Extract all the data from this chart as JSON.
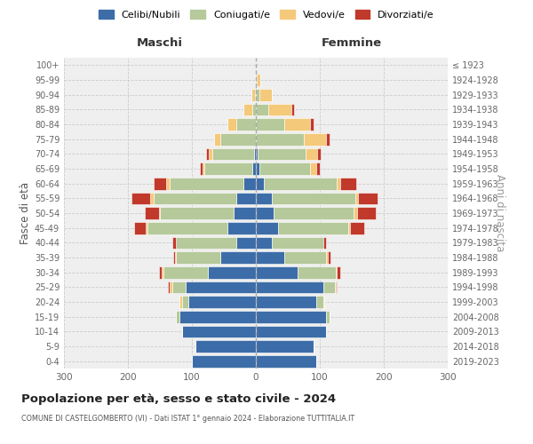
{
  "age_groups": [
    "0-4",
    "5-9",
    "10-14",
    "15-19",
    "20-24",
    "25-29",
    "30-34",
    "35-39",
    "40-44",
    "45-49",
    "50-54",
    "55-59",
    "60-64",
    "65-69",
    "70-74",
    "75-79",
    "80-84",
    "85-89",
    "90-94",
    "95-99",
    "100+"
  ],
  "birth_years": [
    "2019-2023",
    "2014-2018",
    "2009-2013",
    "2004-2008",
    "1999-2003",
    "1994-1998",
    "1989-1993",
    "1984-1988",
    "1979-1983",
    "1974-1978",
    "1969-1973",
    "1964-1968",
    "1959-1963",
    "1954-1958",
    "1949-1953",
    "1944-1948",
    "1939-1943",
    "1934-1938",
    "1929-1933",
    "1924-1928",
    "≤ 1923"
  ],
  "maschi_celibi": [
    100,
    95,
    115,
    120,
    105,
    110,
    75,
    55,
    30,
    45,
    35,
    30,
    20,
    5,
    3,
    0,
    0,
    0,
    0,
    0,
    0
  ],
  "maschi_coniugati": [
    0,
    0,
    0,
    5,
    10,
    20,
    70,
    70,
    95,
    125,
    115,
    130,
    115,
    75,
    65,
    55,
    30,
    5,
    2,
    0,
    0
  ],
  "maschi_vedovi": [
    0,
    0,
    0,
    0,
    5,
    5,
    2,
    2,
    0,
    2,
    2,
    5,
    5,
    3,
    5,
    10,
    15,
    15,
    5,
    2,
    0
  ],
  "maschi_divorziati": [
    0,
    0,
    0,
    0,
    0,
    2,
    5,
    2,
    5,
    18,
    22,
    30,
    20,
    5,
    5,
    0,
    0,
    0,
    0,
    0,
    0
  ],
  "femmine_nubili": [
    95,
    90,
    110,
    110,
    95,
    105,
    65,
    45,
    25,
    35,
    28,
    25,
    12,
    5,
    3,
    0,
    0,
    0,
    0,
    0,
    0
  ],
  "femmine_coniugate": [
    0,
    0,
    0,
    5,
    10,
    18,
    60,
    65,
    80,
    110,
    125,
    130,
    115,
    80,
    75,
    75,
    45,
    20,
    5,
    2,
    0
  ],
  "femmine_vedove": [
    0,
    0,
    0,
    0,
    2,
    2,
    2,
    2,
    0,
    2,
    5,
    5,
    5,
    10,
    18,
    35,
    40,
    35,
    20,
    5,
    0
  ],
  "femmine_divorziate": [
    0,
    0,
    0,
    0,
    0,
    2,
    5,
    5,
    5,
    22,
    30,
    30,
    25,
    5,
    5,
    5,
    5,
    5,
    0,
    0,
    0
  ],
  "colors": {
    "celibi": "#3d6da8",
    "coniugati": "#b5c99a",
    "vedovi": "#f5c97a",
    "divorziati": "#c0392b"
  },
  "title": "Popolazione per età, sesso e stato civile - 2024",
  "subtitle": "COMUNE DI CASTELGOMBERTO (VI) - Dati ISTAT 1° gennaio 2024 - Elaborazione TUTTITALIA.IT",
  "header_left": "Maschi",
  "header_right": "Femmine",
  "ylabel_left": "Fasce di età",
  "ylabel_right": "Anni di nascita",
  "xlim": 300,
  "bg_color": "#ffffff",
  "plot_bg": "#efefef",
  "grid_color": "#cccccc",
  "legend_labels": [
    "Celibi/Nubili",
    "Coniugati/e",
    "Vedovi/e",
    "Divorziati/e"
  ]
}
